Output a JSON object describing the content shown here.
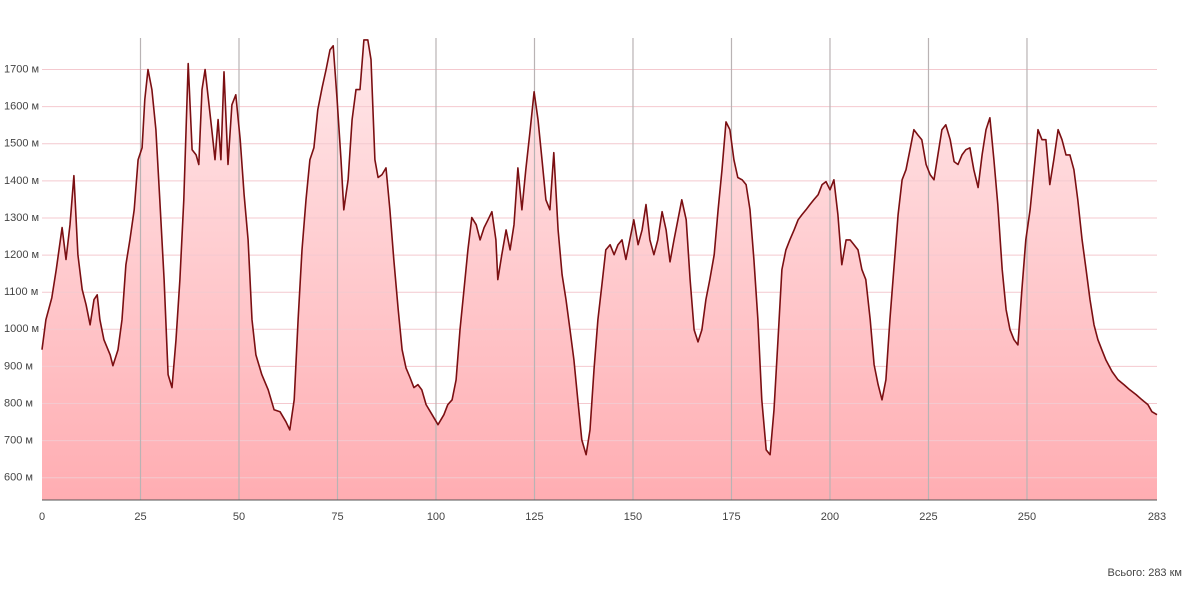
{
  "chart_data": {
    "type": "area",
    "color": "#7b0f12",
    "fill_colors": [
      "#ffe8ea",
      "#ffadb2"
    ],
    "grid": true,
    "footer": "Всього: 283 км",
    "xlim": [
      0,
      283
    ],
    "xticks": [
      0,
      25,
      50,
      75,
      100,
      125,
      150,
      175,
      200,
      225,
      250,
      283
    ],
    "ylim": [
      540,
      1785
    ],
    "yticks": [
      {
        "value": 600,
        "label": "600 м"
      },
      {
        "value": 700,
        "label": "700 м"
      },
      {
        "value": 800,
        "label": "800 м"
      },
      {
        "value": 900,
        "label": "900 м"
      },
      {
        "value": 1000,
        "label": "1000 м"
      },
      {
        "value": 1100,
        "label": "1100 м"
      },
      {
        "value": 1200,
        "label": "1200 м"
      },
      {
        "value": 1300,
        "label": "1300 м"
      },
      {
        "value": 1400,
        "label": "1400 м"
      },
      {
        "value": 1500,
        "label": "1500 м"
      },
      {
        "value": 1600,
        "label": "1600 м"
      },
      {
        "value": 1700,
        "label": "1700 м"
      }
    ],
    "x": [
      0,
      1.0,
      2.5,
      3.6,
      5.1,
      6.1,
      7.1,
      8.1,
      9.1,
      10.2,
      11.2,
      12.2,
      13.2,
      14.0,
      14.7,
      15.7,
      17.3,
      18.0,
      19.3,
      20.3,
      21.3,
      22.3,
      23.4,
      24.4,
      25.4,
      26.1,
      26.9,
      27.9,
      28.9,
      29.9,
      31.0,
      32.0,
      33.0,
      34.0,
      35.0,
      36.0,
      37.1,
      38.1,
      39.1,
      39.8,
      40.6,
      41.4,
      42.1,
      43.1,
      43.9,
      44.7,
      45.4,
      46.2,
      47.2,
      48.2,
      49.2,
      50.3,
      51.3,
      52.3,
      53.3,
      54.3,
      55.8,
      57.4,
      58.9,
      60.4,
      61.9,
      62.9,
      64.0,
      65.0,
      66.0,
      67.0,
      68.0,
      69.0,
      70.0,
      71.1,
      72.1,
      73.1,
      73.9,
      74.9,
      75.9,
      76.6,
      77.7,
      78.7,
      79.7,
      80.7,
      81.7,
      82.7,
      83.5,
      84.5,
      85.3,
      86.3,
      87.3,
      88.3,
      89.3,
      90.4,
      91.4,
      92.4,
      93.4,
      94.4,
      95.4,
      96.4,
      97.5,
      99.0,
      100.5,
      102.0,
      103.0,
      104.1,
      105.1,
      106.1,
      107.1,
      108.1,
      109.1,
      110.2,
      111.2,
      112.2,
      113.2,
      114.2,
      115.2,
      115.7,
      116.7,
      117.8,
      118.8,
      119.8,
      120.8,
      121.8,
      122.8,
      123.9,
      124.9,
      125.9,
      126.9,
      127.9,
      128.9,
      129.9,
      131.0,
      132.0,
      133.0,
      134.0,
      135.0,
      136.0,
      137.0,
      138.1,
      139.1,
      140.1,
      141.1,
      142.1,
      143.1,
      144.2,
      145.2,
      146.2,
      147.2,
      148.2,
      149.2,
      150.2,
      151.3,
      152.3,
      153.3,
      154.3,
      155.3,
      156.3,
      157.4,
      158.4,
      159.4,
      160.4,
      161.4,
      162.4,
      163.5,
      164.5,
      165.5,
      166.5,
      167.5,
      168.5,
      169.5,
      170.6,
      171.6,
      172.6,
      173.6,
      174.6,
      175.6,
      176.6,
      177.7,
      178.7,
      179.7,
      180.7,
      181.7,
      182.7,
      183.8,
      184.8,
      185.8,
      186.8,
      187.8,
      188.8,
      189.8,
      190.9,
      191.9,
      192.9,
      193.9,
      194.9,
      195.9,
      197.0,
      198.0,
      199.0,
      200.0,
      201.0,
      202.0,
      203.0,
      204.1,
      205.1,
      206.1,
      207.1,
      208.1,
      209.1,
      210.2,
      211.2,
      212.2,
      213.2,
      214.2,
      215.2,
      216.2,
      217.3,
      218.3,
      219.3,
      220.3,
      221.3,
      222.3,
      223.3,
      224.4,
      225.4,
      226.4,
      227.4,
      228.4,
      229.4,
      230.5,
      231.5,
      232.5,
      233.5,
      234.5,
      235.5,
      236.5,
      237.6,
      238.6,
      239.6,
      240.6,
      241.6,
      242.6,
      243.7,
      244.7,
      245.7,
      246.7,
      247.7,
      248.7,
      249.7,
      250.8,
      251.8,
      252.8,
      253.8,
      254.8,
      255.8,
      256.8,
      257.9,
      258.9,
      259.9,
      260.9,
      261.9,
      262.9,
      264.0,
      265.0,
      266.0,
      267.0,
      268.0,
      269.0,
      270.0,
      271.6,
      273.1,
      274.6,
      276.1,
      277.7,
      279.2,
      280.7,
      281.7,
      283
    ],
    "values": [
      945,
      1026,
      1085,
      1160,
      1274,
      1188,
      1282,
      1414,
      1201,
      1107,
      1066,
      1012,
      1080,
      1093,
      1026,
      972,
      931,
      902,
      945,
      1026,
      1174,
      1241,
      1322,
      1457,
      1489,
      1619,
      1700,
      1646,
      1538,
      1349,
      1134,
      878,
      843,
      972,
      1134,
      1349,
      1716,
      1484,
      1470,
      1444,
      1646,
      1700,
      1632,
      1538,
      1457,
      1565,
      1457,
      1694,
      1444,
      1605,
      1632,
      1511,
      1363,
      1241,
      1026,
      931,
      878,
      837,
      783,
      778,
      751,
      729,
      810,
      1026,
      1214,
      1349,
      1457,
      1489,
      1592,
      1651,
      1700,
      1753,
      1764,
      1619,
      1457,
      1322,
      1403,
      1565,
      1646,
      1646,
      1780,
      1780,
      1727,
      1457,
      1409,
      1417,
      1435,
      1322,
      1188,
      1053,
      945,
      896,
      870,
      843,
      851,
      837,
      797,
      770,
      743,
      770,
      797,
      810,
      864,
      999,
      1107,
      1214,
      1301,
      1282,
      1241,
      1274,
      1295,
      1317,
      1241,
      1134,
      1201,
      1268,
      1214,
      1282,
      1435,
      1322,
      1430,
      1538,
      1640,
      1565,
      1457,
      1349,
      1322,
      1476,
      1268,
      1147,
      1080,
      999,
      918,
      810,
      702,
      662,
      729,
      891,
      1026,
      1120,
      1214,
      1228,
      1201,
      1228,
      1241,
      1188,
      1241,
      1295,
      1228,
      1268,
      1336,
      1241,
      1201,
      1241,
      1317,
      1268,
      1182,
      1241,
      1295,
      1349,
      1295,
      1134,
      999,
      966,
      999,
      1080,
      1134,
      1201,
      1322,
      1430,
      1559,
      1538,
      1457,
      1409,
      1403,
      1390,
      1322,
      1188,
      1026,
      810,
      675,
      662,
      783,
      972,
      1161,
      1214,
      1241,
      1268,
      1295,
      1309,
      1322,
      1336,
      1349,
      1363,
      1390,
      1398,
      1376,
      1403,
      1309,
      1174,
      1241,
      1241,
      1228,
      1214,
      1161,
      1134,
      1026,
      905,
      851,
      810,
      864,
      1026,
      1161,
      1309,
      1403,
      1430,
      1484,
      1538,
      1524,
      1511,
      1444,
      1417,
      1403,
      1470,
      1538,
      1551,
      1511,
      1452,
      1444,
      1470,
      1484,
      1489,
      1430,
      1382,
      1470,
      1538,
      1570,
      1457,
      1336,
      1161,
      1053,
      999,
      972,
      958,
      1107,
      1241,
      1322,
      1430,
      1538,
      1511,
      1511,
      1390,
      1457,
      1538,
      1511,
      1470,
      1470,
      1430,
      1349,
      1241,
      1161,
      1080,
      1012,
      972,
      945,
      918,
      886,
      864,
      851,
      837,
      824,
      810,
      797,
      778,
      770
    ]
  }
}
